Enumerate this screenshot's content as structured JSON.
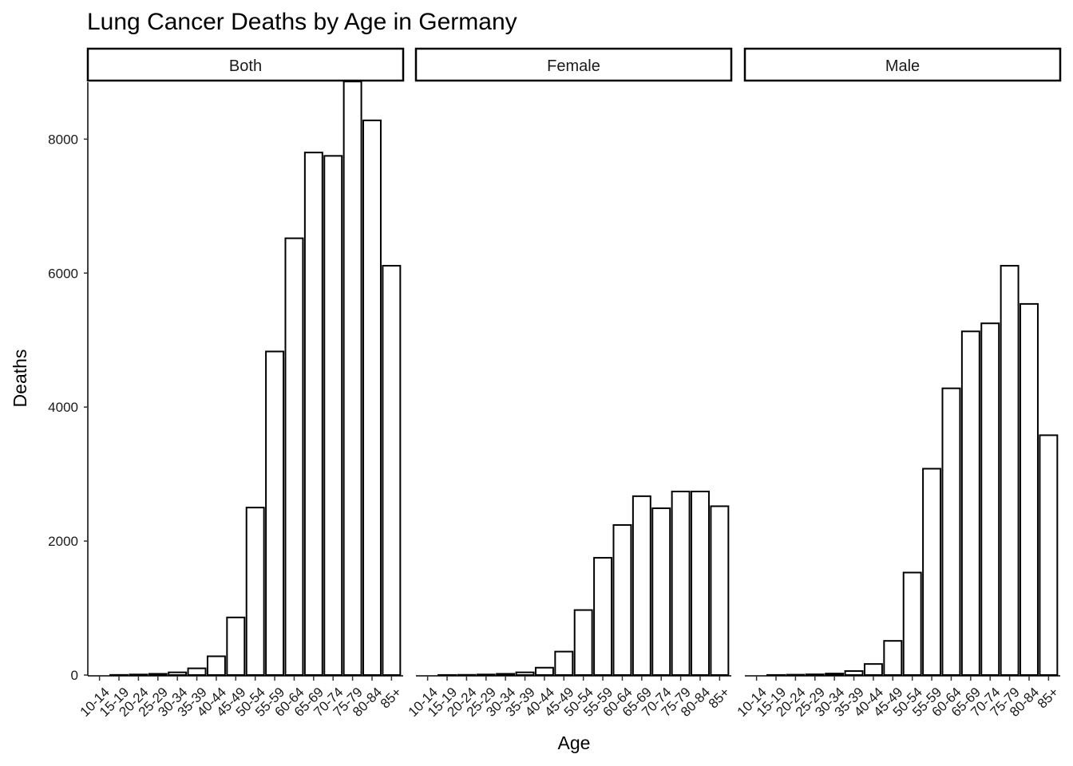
{
  "chart_data": {
    "type": "bar",
    "title": "Lung Cancer Deaths by Age in Germany",
    "xlabel": "Age",
    "ylabel": "Deaths",
    "ylim": [
      0,
      8850
    ],
    "yticks": [
      0,
      2000,
      4000,
      6000,
      8000
    ],
    "grid": false,
    "categories": [
      "10-14",
      "15-19",
      "20-24",
      "25-29",
      "30-34",
      "35-39",
      "40-44",
      "45-49",
      "50-54",
      "55-59",
      "60-64",
      "65-69",
      "70-74",
      "75-79",
      "80-84",
      "85+"
    ],
    "panels": [
      {
        "name": "Both",
        "values": [
          0,
          2,
          8,
          18,
          40,
          100,
          280,
          860,
          2500,
          4830,
          6520,
          7800,
          7750,
          8860,
          8280,
          6110
        ]
      },
      {
        "name": "Female",
        "values": [
          0,
          1,
          3,
          8,
          18,
          40,
          110,
          350,
          970,
          1750,
          2240,
          2670,
          2490,
          2740,
          2740,
          2520
        ]
      },
      {
        "name": "Male",
        "values": [
          0,
          1,
          5,
          10,
          22,
          60,
          165,
          510,
          1530,
          3080,
          4280,
          5130,
          5250,
          6110,
          5540,
          3580
        ]
      }
    ]
  }
}
